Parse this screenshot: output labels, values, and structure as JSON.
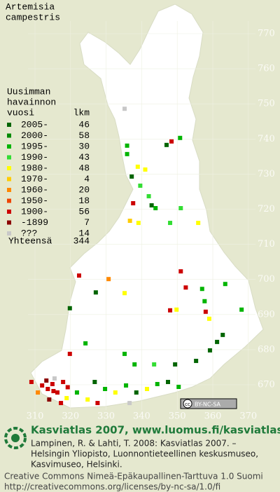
{
  "species": {
    "genus": "Artemisia",
    "epithet": "campestris"
  },
  "legend": {
    "heading": [
      "Uusimman",
      "havainnon",
      "vuosi"
    ],
    "count_heading": "lkm",
    "rows": [
      {
        "label": "2005-",
        "count": 46,
        "color": "#006400"
      },
      {
        "label": "2000-",
        "count": 58,
        "color": "#008a00"
      },
      {
        "label": "1995-",
        "count": 30,
        "color": "#00b400"
      },
      {
        "label": "1990-",
        "count": 43,
        "color": "#33dd33"
      },
      {
        "label": "1980-",
        "count": 48,
        "color": "#ffff00"
      },
      {
        "label": "1970-",
        "count": 4,
        "color": "#ffcc00"
      },
      {
        "label": "1960-",
        "count": 20,
        "color": "#ff8800"
      },
      {
        "label": "1950-",
        "count": 18,
        "color": "#ee4400"
      },
      {
        "label": "1900-",
        "count": 56,
        "color": "#cc0000"
      },
      {
        "label": "-1899",
        "count": 7,
        "color": "#8b0000"
      },
      {
        "label": "???",
        "count": 14,
        "color": "#c8c8c8"
      }
    ],
    "total_label": "Yhteensä",
    "total": 344
  },
  "grid": {
    "northing": [
      770,
      760,
      750,
      740,
      730,
      720,
      710,
      700,
      690,
      680,
      670
    ],
    "easting": [
      310,
      320,
      330,
      340,
      350,
      360,
      370
    ]
  },
  "observations": [
    [
      335.2,
      748.6,
      10
    ],
    [
      335.9,
      738.1,
      2
    ],
    [
      347,
      738.3,
      0
    ],
    [
      348.4,
      739.3,
      8
    ],
    [
      350.8,
      740.3,
      2
    ],
    [
      335.9,
      735.7,
      2
    ],
    [
      338.9,
      732.1,
      4
    ],
    [
      341,
      731.3,
      4
    ],
    [
      337.2,
      729.3,
      0
    ],
    [
      339.6,
      726.7,
      3
    ],
    [
      342,
      723.7,
      3
    ],
    [
      342.8,
      721.1,
      0
    ],
    [
      343.9,
      720.3,
      2
    ],
    [
      337.6,
      721.7,
      8
    ],
    [
      339.1,
      716.1,
      4
    ],
    [
      336.7,
      716.7,
      5
    ],
    [
      348,
      716.1,
      3
    ],
    [
      351,
      720.3,
      3
    ],
    [
      355.9,
      716.1,
      4
    ],
    [
      351,
      702.3,
      8
    ],
    [
      352.4,
      697.7,
      8
    ],
    [
      357,
      697.3,
      2
    ],
    [
      357.7,
      693.8,
      2
    ],
    [
      359,
      688.8,
      4
    ],
    [
      358,
      690.8,
      8
    ],
    [
      368.1,
      691.4,
      2
    ],
    [
      363.5,
      698.7,
      2
    ],
    [
      322.4,
      701.1,
      8
    ],
    [
      330.7,
      700.1,
      6
    ],
    [
      327.1,
      696.3,
      0
    ],
    [
      335.2,
      696.1,
      4
    ],
    [
      348,
      691.2,
      8
    ],
    [
      349.8,
      691.4,
      4
    ],
    [
      319.8,
      691.8,
      0
    ],
    [
      324.2,
      681.8,
      2
    ],
    [
      335.2,
      678.8,
      2
    ],
    [
      338,
      675.8,
      2
    ],
    [
      343.5,
      675.8,
      3
    ],
    [
      349.4,
      675.8,
      0
    ],
    [
      355.3,
      676.8,
      0
    ],
    [
      359.2,
      679.8,
      0
    ],
    [
      361.2,
      682.2,
      0
    ],
    [
      362.8,
      684.2,
      0
    ],
    [
      319.8,
      678.8,
      8
    ],
    [
      312,
      669.8,
      8
    ],
    [
      313.6,
      668.8,
      8
    ],
    [
      314.9,
      670.2,
      8
    ],
    [
      316.3,
      667.8,
      8
    ],
    [
      317.9,
      670.8,
      8
    ],
    [
      314,
      665.8,
      9
    ],
    [
      318.9,
      666.2,
      4
    ],
    [
      321.8,
      667.8,
      2
    ],
    [
      324.8,
      665.8,
      4
    ],
    [
      326.8,
      670.8,
      0
    ],
    [
      329.7,
      668.8,
      2
    ],
    [
      332.6,
      667.8,
      4
    ],
    [
      335.6,
      669.8,
      2
    ],
    [
      338.5,
      667.8,
      0
    ],
    [
      341.5,
      668.8,
      4
    ],
    [
      344.4,
      670.2,
      2
    ],
    [
      347.4,
      670.8,
      0
    ],
    [
      350.4,
      669.4,
      2
    ],
    [
      309,
      670.8,
      8
    ],
    [
      310.8,
      667.8,
      6
    ],
    [
      336.6,
      664.8,
      10
    ],
    [
      327.6,
      664.8,
      8
    ],
    [
      317.3,
      664.8,
      8
    ],
    [
      315.5,
      671.8,
      10
    ],
    [
      315.2,
      668.2,
      8
    ],
    [
      319.2,
      669.3,
      8
    ],
    [
      313.2,
      671.2,
      9
    ]
  ],
  "license_badge": {
    "icon": "cc",
    "text": "BY-NC-SA"
  },
  "footer": {
    "title": "Kasviatlas 2007, www.luomus.fi/kasviatlas",
    "citation": [
      "Lampinen, R. & Lahti, T. 2008: Kasviatlas 2007. –",
      "Helsingin Yliopisto, Luonnontieteellinen keskusmuseo,",
      "Kasvimuseo, Helsinki."
    ],
    "license": [
      "Creative Commons Nimeä-Epäkaupallinen-Tarttuva 1.0 Suomi",
      "http://creativecommons.org/licenses/by-nc-sa/1.0/fi"
    ]
  }
}
